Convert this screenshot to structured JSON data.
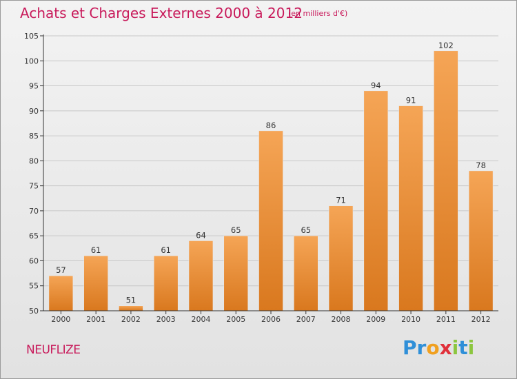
{
  "header": {
    "title": "Achats et Charges Externes 2000 à 2012",
    "subtitle": "(en milliers d'€)"
  },
  "footer": {
    "commune": "NEUFLIZE",
    "logo_letters": [
      "P",
      "r",
      "o",
      "x",
      "i",
      "t",
      "i"
    ],
    "logo_colors": [
      "#2f8fd8",
      "#2f8fd8",
      "#f0a020",
      "#e0303a",
      "#8cc63f",
      "#2f8fd8",
      "#8cc63f"
    ]
  },
  "colors": {
    "bar_top": "#f5a556",
    "bar_bottom": "#d9781e",
    "axis": "#333333",
    "grid": "#c8c8c8",
    "title": "#c8195a"
  },
  "chart_data": {
    "type": "bar",
    "title": "Achats et Charges Externes 2000 à 2012",
    "subtitle": "(en milliers d'€)",
    "xlabel": "",
    "ylabel": "",
    "categories": [
      "2000",
      "2001",
      "2002",
      "2003",
      "2004",
      "2005",
      "2006",
      "2007",
      "2008",
      "2009",
      "2010",
      "2011",
      "2012"
    ],
    "values": [
      57,
      61,
      51,
      61,
      64,
      65,
      86,
      65,
      71,
      94,
      91,
      102,
      78
    ],
    "ylim": [
      50,
      105
    ],
    "yticks": [
      50,
      55,
      60,
      65,
      70,
      75,
      80,
      85,
      90,
      95,
      100,
      105
    ],
    "grid": true,
    "data_labels": true
  }
}
